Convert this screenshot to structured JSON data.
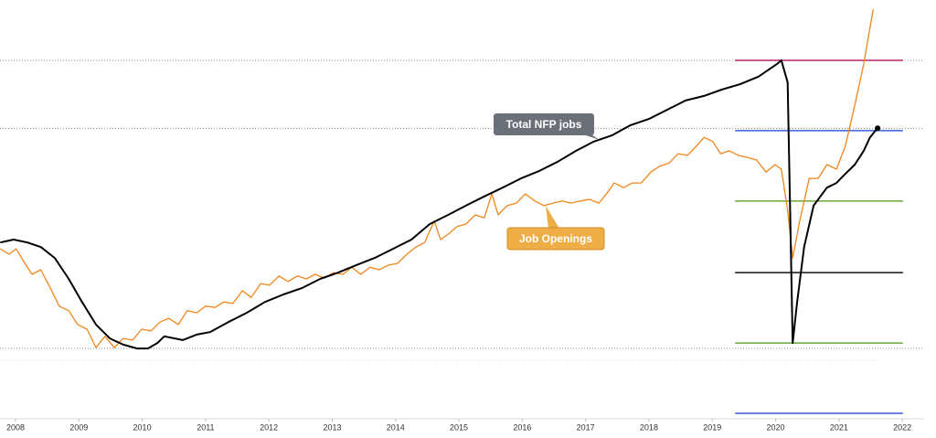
{
  "chart_data": {
    "type": "line",
    "xlim": [
      2007.755,
      2022.33
    ],
    "ylim": [
      0,
      100
    ],
    "xticks": [
      2008,
      2009,
      2010,
      2011,
      2012,
      2013,
      2014,
      2015,
      2016,
      2017,
      2018,
      2019,
      2020,
      2021,
      2022
    ],
    "series": [
      {
        "name": "Total NFP jobs",
        "color": "#000000",
        "x": [
          2007.76,
          2007.97,
          2008.19,
          2008.4,
          2008.62,
          2008.84,
          2009.05,
          2009.27,
          2009.49,
          2009.7,
          2009.92,
          2010.09,
          2010.24,
          2010.35,
          2010.64,
          2010.86,
          2011.07,
          2011.36,
          2011.65,
          2011.94,
          2012.23,
          2012.52,
          2012.81,
          2013.09,
          2013.38,
          2013.67,
          2013.96,
          2014.25,
          2014.54,
          2014.83,
          2015.11,
          2015.4,
          2015.69,
          2015.98,
          2016.27,
          2016.56,
          2016.85,
          2017.13,
          2017.42,
          2017.71,
          2018.0,
          2018.29,
          2018.58,
          2018.87,
          2019.15,
          2019.44,
          2019.73,
          2020.02,
          2020.09,
          2020.19,
          2020.27,
          2020.34,
          2020.45,
          2020.6,
          2020.81,
          2020.96,
          2021.1,
          2021.25,
          2021.39,
          2021.49,
          2021.61
        ],
        "values": [
          42.1,
          42.8,
          42.1,
          41.0,
          38.4,
          33.4,
          27.9,
          22.5,
          19.2,
          17.7,
          16.8,
          16.8,
          18.1,
          19.7,
          18.8,
          20.1,
          20.7,
          23.1,
          25.3,
          27.9,
          29.7,
          31.2,
          33.4,
          34.9,
          36.7,
          38.4,
          40.6,
          42.8,
          46.5,
          48.7,
          50.9,
          53.1,
          55.2,
          57.4,
          59.2,
          61.4,
          64.0,
          66.2,
          67.7,
          70.1,
          71.6,
          73.8,
          76.0,
          77.1,
          78.6,
          79.9,
          81.7,
          84.7,
          85.6,
          80.3,
          18.1,
          27.9,
          41.0,
          50.9,
          55.2,
          56.3,
          58.5,
          60.7,
          64.0,
          67.2,
          69.4
        ]
      },
      {
        "name": "Job Openings",
        "color": "#f0861c",
        "x": [
          2007.76,
          2007.9,
          2008.01,
          2008.12,
          2008.26,
          2008.4,
          2008.55,
          2008.69,
          2008.84,
          2008.98,
          2009.13,
          2009.27,
          2009.41,
          2009.56,
          2009.7,
          2009.85,
          2009.99,
          2010.14,
          2010.28,
          2010.42,
          2010.57,
          2010.71,
          2010.86,
          2011.0,
          2011.15,
          2011.29,
          2011.43,
          2011.58,
          2011.72,
          2011.87,
          2012.01,
          2012.16,
          2012.3,
          2012.45,
          2012.59,
          2012.73,
          2012.88,
          2013.02,
          2013.17,
          2013.31,
          2013.45,
          2013.6,
          2013.74,
          2013.89,
          2014.03,
          2014.18,
          2014.32,
          2014.46,
          2014.61,
          2014.71,
          2014.85,
          2014.97,
          2015.11,
          2015.26,
          2015.4,
          2015.52,
          2015.62,
          2015.76,
          2015.91,
          2016.05,
          2016.2,
          2016.34,
          2016.49,
          2016.63,
          2016.77,
          2016.92,
          2017.06,
          2017.21,
          2017.35,
          2017.45,
          2017.6,
          2017.74,
          2017.88,
          2018.03,
          2018.17,
          2018.32,
          2018.46,
          2018.61,
          2018.75,
          2018.87,
          2019.01,
          2019.13,
          2019.27,
          2019.41,
          2019.56,
          2019.7,
          2019.85,
          2019.99,
          2020.09,
          2020.19,
          2020.27,
          2020.38,
          2020.53,
          2020.67,
          2020.81,
          2020.96,
          2021.1,
          2021.25,
          2021.39,
          2021.54
        ],
        "values": [
          40.6,
          39.3,
          40.6,
          37.8,
          34.5,
          35.6,
          31.2,
          26.9,
          25.8,
          22.5,
          21.4,
          17.0,
          19.7,
          17.0,
          19.2,
          18.8,
          21.4,
          21.0,
          23.1,
          24.0,
          22.5,
          25.8,
          25.3,
          26.9,
          26.6,
          27.9,
          27.5,
          30.6,
          29.0,
          32.3,
          31.9,
          34.1,
          32.8,
          34.1,
          33.4,
          34.5,
          33.6,
          34.9,
          34.5,
          36.2,
          34.5,
          36.2,
          35.6,
          36.7,
          37.1,
          39.3,
          41.0,
          42.1,
          47.2,
          42.8,
          44.3,
          45.9,
          46.5,
          48.7,
          48.0,
          53.7,
          48.7,
          50.9,
          51.5,
          53.7,
          52.0,
          50.9,
          51.5,
          52.0,
          51.5,
          52.0,
          52.4,
          51.5,
          54.1,
          56.3,
          55.2,
          56.3,
          56.3,
          58.9,
          60.3,
          61.1,
          63.3,
          62.9,
          65.1,
          67.2,
          66.2,
          63.3,
          64.0,
          62.9,
          62.4,
          61.8,
          58.9,
          60.7,
          59.6,
          49.8,
          38.4,
          47.2,
          57.4,
          57.4,
          60.7,
          59.6,
          65.1,
          74.9,
          84.7,
          97.8
        ]
      }
    ],
    "levels_x": [
      2019.36,
      2022.01
    ],
    "levels": [
      {
        "value": 85.6,
        "color": "#b5246a"
      },
      {
        "value": 68.8,
        "color": "#3a5fd9"
      },
      {
        "value": 52.0,
        "color": "#6aa83a"
      },
      {
        "value": 34.9,
        "color": "#111111"
      },
      {
        "value": 18.1,
        "color": "#6aa83a"
      },
      {
        "value": 1.3,
        "color": "#3a5fd9"
      }
    ],
    "reference_lines": [
      85.6,
      69.3,
      16.8
    ]
  }
}
